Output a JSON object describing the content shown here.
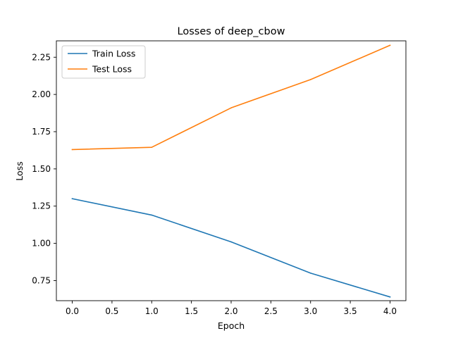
{
  "chart_data": {
    "type": "line",
    "title": "Losses of deep_cbow",
    "xlabel": "Epoch",
    "ylabel": "Loss",
    "x": [
      0,
      1,
      2,
      3,
      4
    ],
    "xlim": [
      -0.2,
      4.2
    ],
    "ylim": [
      0.615,
      2.36
    ],
    "xticks": [
      0.0,
      0.5,
      1.0,
      1.5,
      2.0,
      2.5,
      3.0,
      3.5,
      4.0
    ],
    "xtick_labels": [
      "0.0",
      "0.5",
      "1.0",
      "1.5",
      "2.0",
      "2.5",
      "3.0",
      "3.5",
      "4.0"
    ],
    "yticks": [
      0.75,
      1.0,
      1.25,
      1.5,
      1.75,
      2.0,
      2.25
    ],
    "ytick_labels": [
      "0.75",
      "1.00",
      "1.25",
      "1.50",
      "1.75",
      "2.00",
      "2.25"
    ],
    "grid": false,
    "legend_position": "top-left",
    "series": [
      {
        "name": "Train Loss",
        "color": "#1f77b4",
        "values": [
          1.3,
          1.19,
          1.01,
          0.8,
          0.64
        ]
      },
      {
        "name": "Test Loss",
        "color": "#ff7f0e",
        "values": [
          1.63,
          1.645,
          1.91,
          2.1,
          2.33
        ]
      }
    ]
  }
}
